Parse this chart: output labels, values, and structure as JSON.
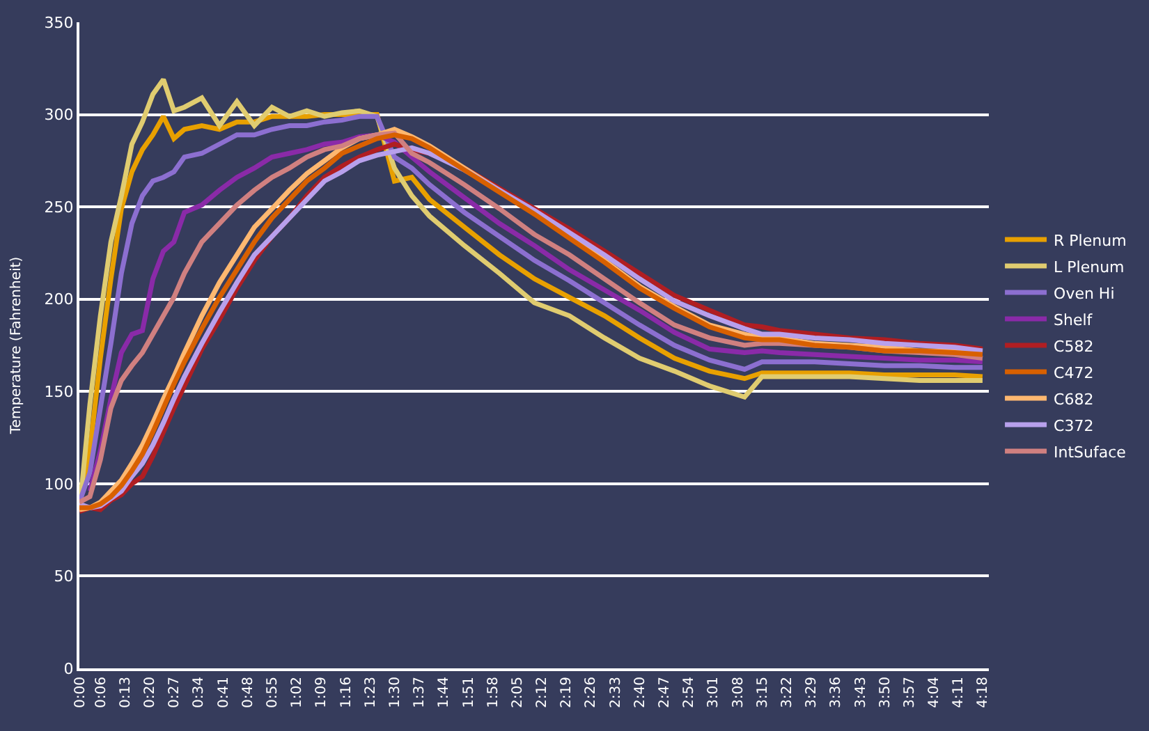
{
  "chart_data": {
    "type": "line",
    "ylabel": "Temperature (Fahrenheit)",
    "x": [
      0,
      0.05,
      0.1,
      0.15,
      0.2,
      0.25,
      0.3,
      0.35,
      0.4,
      0.45,
      0.5,
      0.583,
      0.667,
      0.75,
      0.833,
      0.917,
      1,
      1.083,
      1.167,
      1.25,
      1.333,
      1.417,
      1.5,
      1.583,
      1.667,
      1.833,
      2,
      2.167,
      2.333,
      2.5,
      2.667,
      2.833,
      3,
      3.167,
      3.25,
      3.333,
      3.5,
      3.667,
      3.833,
      4,
      4.167,
      4.3
    ],
    "series": [
      {
        "name": "R Plenum",
        "color": "#e8a000",
        "values": [
          88,
          118,
          168,
          211,
          249,
          269,
          281,
          289,
          299,
          287,
          292,
          294,
          292,
          296,
          296,
          299,
          299,
          299,
          300,
          300,
          300,
          300,
          264,
          266,
          254,
          239,
          224,
          211,
          201,
          191,
          179,
          168,
          161,
          157,
          160,
          160,
          160,
          160,
          159,
          159,
          159,
          158
        ]
      },
      {
        "name": "L Plenum",
        "color": "#e0cc70",
        "values": [
          85,
          143,
          191,
          231,
          256,
          284,
          296,
          311,
          319,
          302,
          304,
          309,
          294,
          307,
          294,
          304,
          299,
          302,
          299,
          301,
          302,
          299,
          271,
          256,
          245,
          229,
          214,
          198,
          191,
          179,
          168,
          161,
          153,
          147,
          158,
          158,
          158,
          158,
          157,
          156,
          156,
          156
        ]
      },
      {
        "name": "Oven Hi",
        "color": "#8c6fd0",
        "values": [
          90,
          106,
          141,
          176,
          214,
          241,
          256,
          264,
          266,
          269,
          277,
          279,
          284,
          289,
          289,
          292,
          294,
          294,
          296,
          297,
          299,
          299,
          277,
          271,
          262,
          247,
          234,
          221,
          210,
          198,
          186,
          175,
          167,
          162,
          166,
          166,
          166,
          165,
          164,
          164,
          163,
          163
        ]
      },
      {
        "name": "Shelf",
        "color": "#8a2aa8",
        "values": [
          null,
          96,
          118,
          146,
          171,
          181,
          183,
          211,
          226,
          231,
          247,
          251,
          259,
          266,
          271,
          277,
          279,
          281,
          284,
          285,
          288,
          289,
          285,
          277,
          269,
          255,
          241,
          229,
          216,
          205,
          194,
          182,
          173,
          171,
          172,
          171,
          170,
          169,
          168,
          167,
          167,
          166
        ]
      },
      {
        "name": "C582",
        "color": "#b01e22",
        "values": [
          85,
          87,
          86,
          91,
          94,
          100,
          104,
          115,
          128,
          141,
          153,
          173,
          189,
          206,
          221,
          234,
          244,
          256,
          266,
          272,
          277,
          281,
          284,
          281,
          279,
          271,
          260,
          249,
          238,
          226,
          214,
          202,
          194,
          186,
          185,
          183,
          181,
          179,
          178,
          176,
          175,
          173
        ]
      },
      {
        "name": "C472",
        "color": "#d86000",
        "values": [
          87,
          87,
          89,
          93,
          99,
          107,
          116,
          128,
          141,
          154,
          166,
          184,
          201,
          216,
          231,
          244,
          254,
          264,
          271,
          279,
          283,
          287,
          289,
          287,
          282,
          270,
          258,
          246,
          233,
          220,
          206,
          195,
          185,
          179,
          178,
          178,
          175,
          174,
          172,
          172,
          171,
          170
        ]
      },
      {
        "name": "C682",
        "color": "#ffb870",
        "values": [
          86,
          87,
          90,
          96,
          102,
          111,
          121,
          133,
          146,
          158,
          171,
          191,
          209,
          224,
          239,
          249,
          259,
          268,
          275,
          282,
          287,
          289,
          292,
          288,
          283,
          271,
          259,
          247,
          234,
          221,
          207,
          196,
          186,
          181,
          179,
          179,
          176,
          175,
          174,
          172,
          172,
          171
        ]
      },
      {
        "name": "C372",
        "color": "#b8a0ec",
        "values": [
          89,
          87,
          88,
          92,
          96,
          104,
          111,
          121,
          133,
          146,
          158,
          176,
          193,
          209,
          224,
          234,
          244,
          254,
          264,
          269,
          275,
          278,
          280,
          282,
          279,
          270,
          259,
          248,
          236,
          224,
          211,
          199,
          191,
          184,
          181,
          181,
          179,
          178,
          176,
          175,
          174,
          172
        ]
      },
      {
        "name": "IntSuface",
        "color": "#d08080",
        "values": [
          90,
          93,
          113,
          141,
          156,
          164,
          171,
          181,
          191,
          201,
          214,
          231,
          241,
          251,
          259,
          266,
          271,
          277,
          281,
          283,
          287,
          289,
          290,
          279,
          274,
          262,
          249,
          235,
          224,
          211,
          198,
          186,
          179,
          175,
          176,
          176,
          175,
          174,
          172,
          171,
          170,
          168
        ]
      }
    ],
    "xlim": [
      0,
      4.33
    ],
    "xticks": [
      {
        "value": 0,
        "label": "0:00"
      },
      {
        "value": 0.1,
        "label": "0:06"
      },
      {
        "value": 0.2167,
        "label": "0:13"
      },
      {
        "value": 0.3333,
        "label": "0:20"
      },
      {
        "value": 0.45,
        "label": "0:27"
      },
      {
        "value": 0.5667,
        "label": "0:34"
      },
      {
        "value": 0.6833,
        "label": "0:41"
      },
      {
        "value": 0.8,
        "label": "0:48"
      },
      {
        "value": 0.9167,
        "label": "0:55"
      },
      {
        "value": 1.0333,
        "label": "1:02"
      },
      {
        "value": 1.15,
        "label": "1:09"
      },
      {
        "value": 1.2667,
        "label": "1:16"
      },
      {
        "value": 1.3833,
        "label": "1:23"
      },
      {
        "value": 1.5,
        "label": "1:30"
      },
      {
        "value": 1.6167,
        "label": "1:37"
      },
      {
        "value": 1.7333,
        "label": "1:44"
      },
      {
        "value": 1.85,
        "label": "1:51"
      },
      {
        "value": 1.9667,
        "label": "1:58"
      },
      {
        "value": 2.0833,
        "label": "2:05"
      },
      {
        "value": 2.2,
        "label": "2:12"
      },
      {
        "value": 2.3167,
        "label": "2:19"
      },
      {
        "value": 2.4333,
        "label": "2:26"
      },
      {
        "value": 2.55,
        "label": "2:33"
      },
      {
        "value": 2.6667,
        "label": "2:40"
      },
      {
        "value": 2.7833,
        "label": "2:47"
      },
      {
        "value": 2.9,
        "label": "2:54"
      },
      {
        "value": 3.0167,
        "label": "3:01"
      },
      {
        "value": 3.1333,
        "label": "3:08"
      },
      {
        "value": 3.25,
        "label": "3:15"
      },
      {
        "value": 3.3667,
        "label": "3:22"
      },
      {
        "value": 3.4833,
        "label": "3:29"
      },
      {
        "value": 3.6,
        "label": "3:36"
      },
      {
        "value": 3.7167,
        "label": "3:43"
      },
      {
        "value": 3.8333,
        "label": "3:50"
      },
      {
        "value": 3.95,
        "label": "3:57"
      },
      {
        "value": 4.0667,
        "label": "4:04"
      },
      {
        "value": 4.1833,
        "label": "4:11"
      },
      {
        "value": 4.3,
        "label": "4:18"
      }
    ],
    "ylim": [
      0,
      350
    ],
    "yticks": [
      0,
      50,
      100,
      150,
      200,
      250,
      300,
      350
    ],
    "grid": "y",
    "legend": "right",
    "marker": "none",
    "line_style": "solid"
  }
}
